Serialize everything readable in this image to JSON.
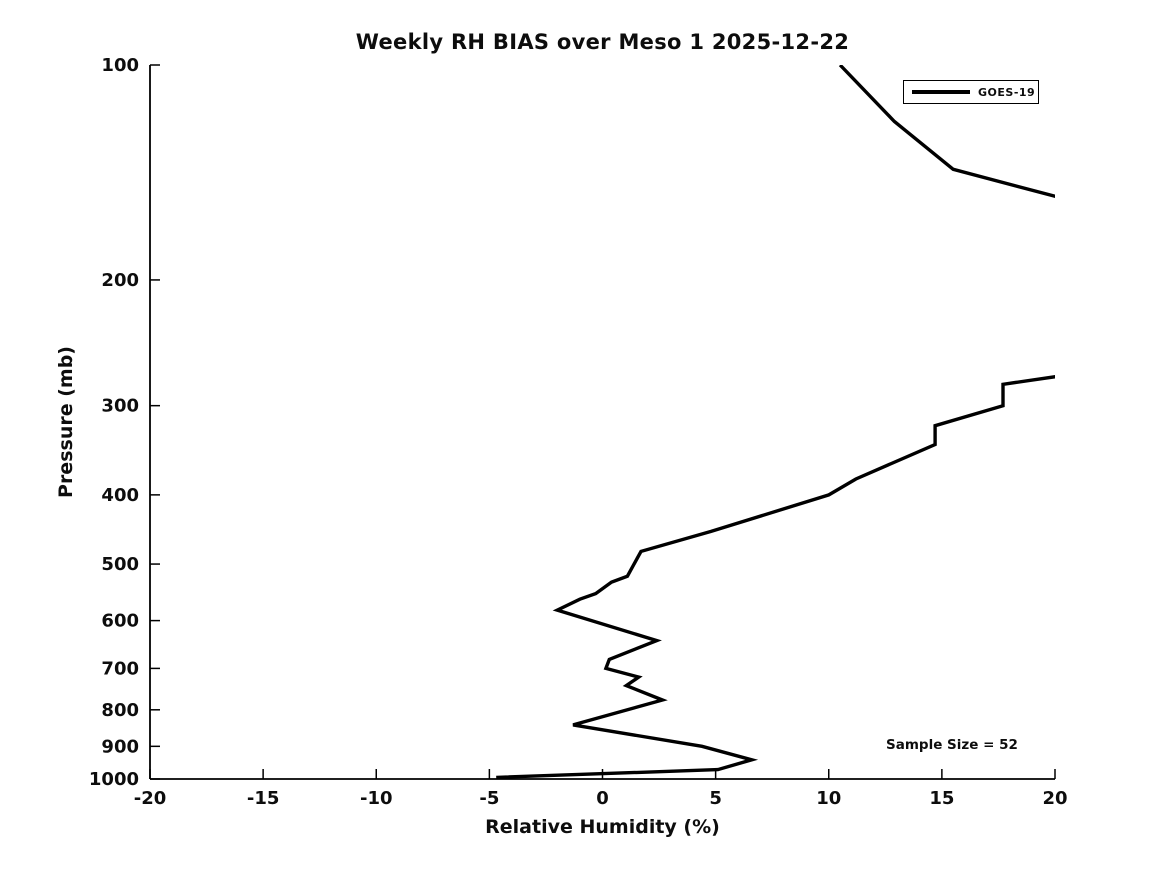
{
  "figure": {
    "background": "#ffffff",
    "text_color": "#0d0d0d",
    "axis_color": "#000000"
  },
  "chart_data": {
    "type": "line",
    "title": "Weekly RH BIAS over Meso 1 2025-12-22",
    "xlabel": "Relative Humidity (%)",
    "ylabel": "Pressure (mb)",
    "xlim": [
      -20,
      20
    ],
    "ylim": [
      100,
      1000
    ],
    "xscale": "linear",
    "yscale": "log",
    "y_inverted": true,
    "grid": false,
    "x_ticks": [
      -20,
      -15,
      -10,
      -5,
      0,
      5,
      10,
      15,
      20
    ],
    "y_ticks": [
      100,
      200,
      300,
      400,
      500,
      600,
      700,
      800,
      900,
      1000
    ],
    "legend": {
      "position": "upper right",
      "entries": [
        {
          "label": "GOES-19",
          "color": "#000000"
        }
      ]
    },
    "annotation": "Sample Size = 52",
    "line_color": "#000000",
    "line_width": 3.4,
    "series": [
      {
        "name": "GOES-19",
        "note": "RH bias (%) vs pressure (mb); trace exceeds +20% (clipped off-axis) between ~155 mb and ~273 mb",
        "segments": [
          [
            [
              10.5,
              100
            ],
            [
              12.9,
              120
            ],
            [
              15.5,
              140
            ],
            [
              20.1,
              153
            ]
          ],
          [
            [
              20.1,
              273
            ],
            [
              17.7,
              280
            ],
            [
              17.7,
              300
            ],
            [
              14.7,
              320
            ],
            [
              14.7,
              340
            ],
            [
              11.2,
              380
            ],
            [
              10.0,
              400
            ],
            [
              4.8,
              450
            ],
            [
              1.7,
              480
            ],
            [
              1.1,
              520
            ],
            [
              0.4,
              530
            ],
            [
              -0.3,
              550
            ],
            [
              -1.0,
              560
            ],
            [
              -2.0,
              580
            ],
            [
              2.4,
              640
            ],
            [
              0.3,
              680
            ],
            [
              0.15,
              700
            ],
            [
              1.6,
              720
            ],
            [
              1.05,
              740
            ],
            [
              2.65,
              775
            ],
            [
              -1.3,
              840
            ],
            [
              4.4,
              900
            ],
            [
              6.6,
              940
            ],
            [
              5.1,
              970
            ],
            [
              -4.7,
              995
            ]
          ]
        ]
      }
    ]
  }
}
